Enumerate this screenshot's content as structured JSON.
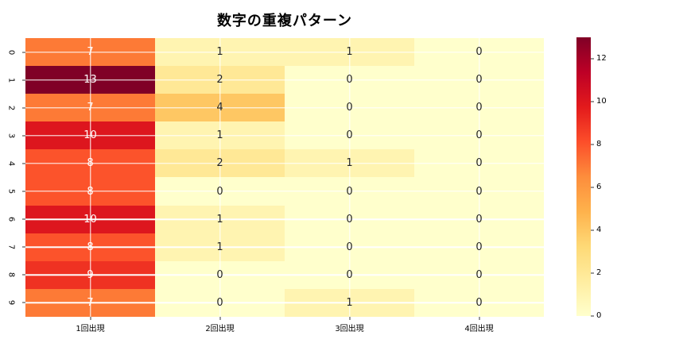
{
  "chart_data": {
    "type": "heatmap",
    "title": "数字の重複パターン",
    "x_categories": [
      "1回出現",
      "2回出現",
      "3回出現",
      "4回出現"
    ],
    "y_categories": [
      "0",
      "1",
      "2",
      "3",
      "4",
      "5",
      "6",
      "7",
      "8",
      "9"
    ],
    "values": [
      [
        7,
        1,
        1,
        0
      ],
      [
        13,
        2,
        0,
        0
      ],
      [
        7,
        4,
        0,
        0
      ],
      [
        10,
        1,
        0,
        0
      ],
      [
        8,
        2,
        1,
        0
      ],
      [
        8,
        0,
        0,
        0
      ],
      [
        10,
        1,
        0,
        0
      ],
      [
        8,
        1,
        0,
        0
      ],
      [
        9,
        0,
        0,
        0
      ],
      [
        7,
        0,
        1,
        0
      ]
    ],
    "vmin": 0,
    "vmax": 13,
    "colormap": "YlOrRd",
    "colormap_stops": [
      "#ffffcc",
      "#ffeda0",
      "#fed976",
      "#feb24c",
      "#fd8d3c",
      "#fc4e2a",
      "#e31a1c",
      "#bd0026",
      "#800026"
    ],
    "colorbar_ticks": [
      0,
      2,
      4,
      6,
      8,
      10,
      12
    ],
    "grid": true,
    "grid_color": "#ffffff",
    "legend_position": "right-colorbar",
    "annotation_color_dark": "#262626",
    "annotation_color_light": "#ffffff",
    "tick_color": "#333333"
  }
}
